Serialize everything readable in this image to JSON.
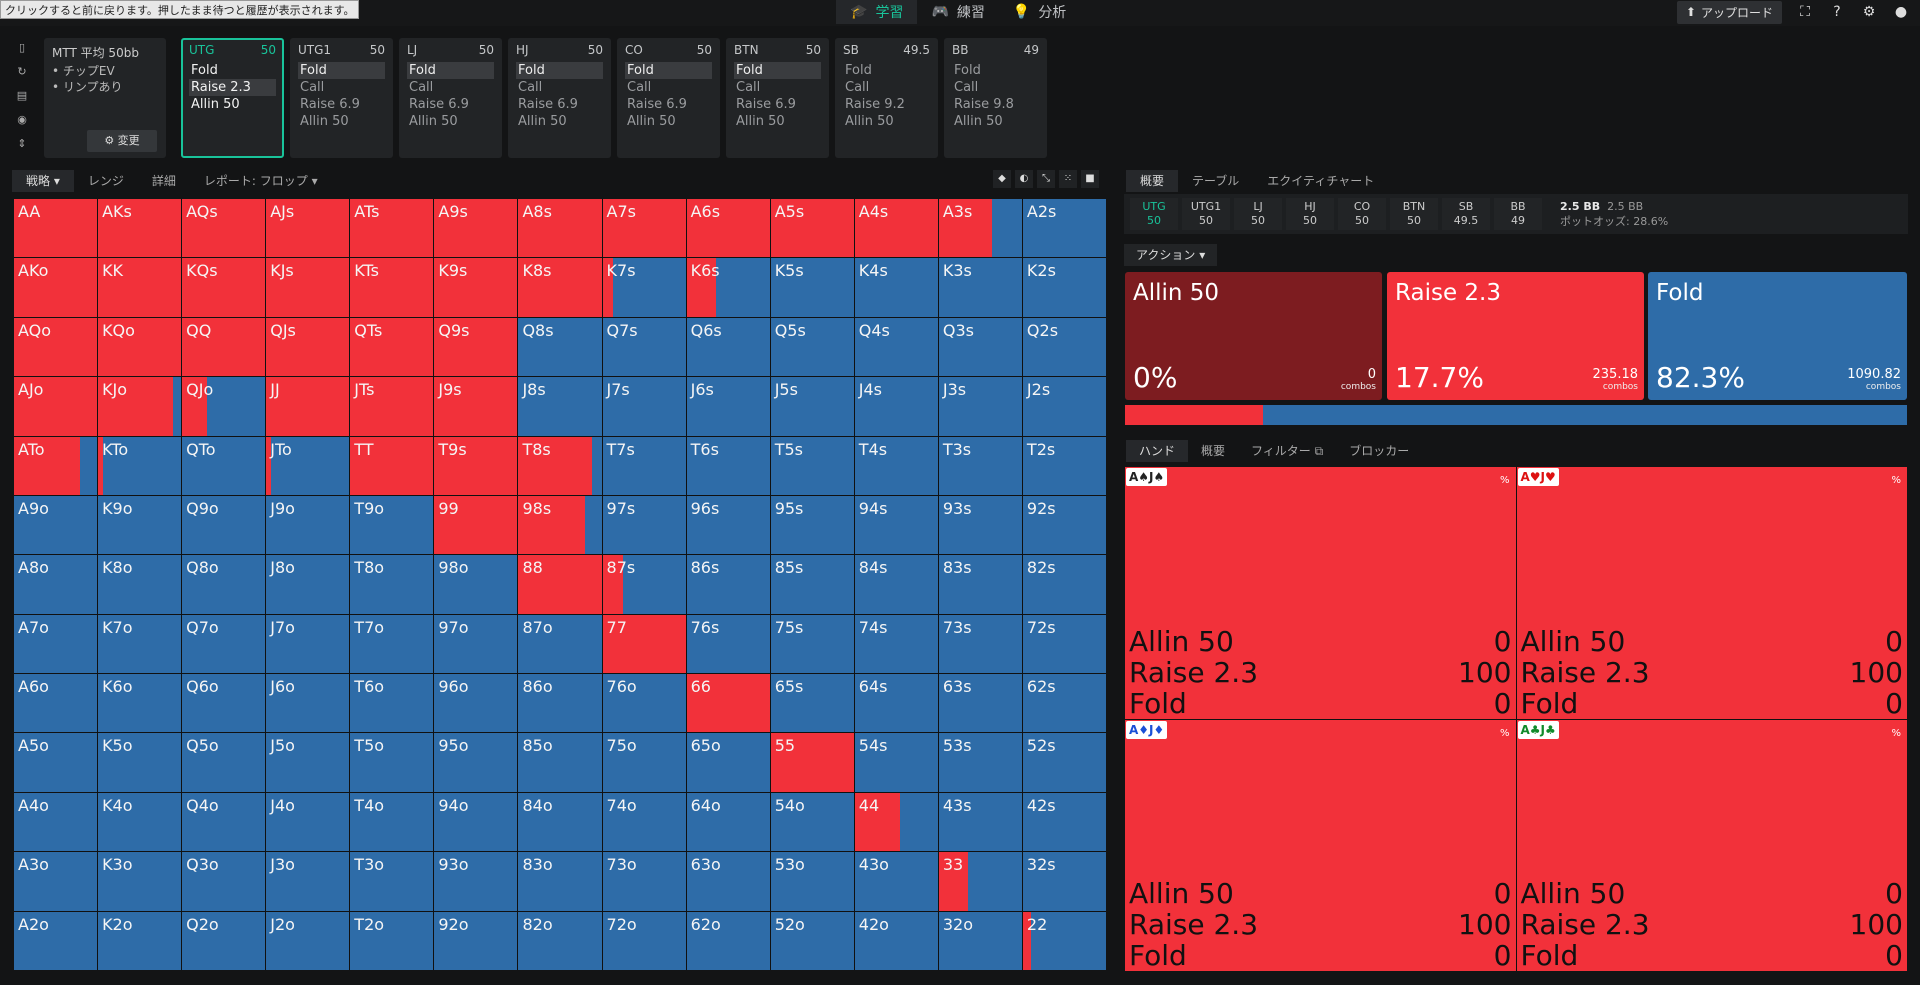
{
  "tooltip": "クリックすると前に戻ります。押したまま待つと履歴が表示されます。",
  "nav": {
    "tabs": [
      {
        "label": "学習",
        "icon": "graduation-cap-icon"
      },
      {
        "label": "練習",
        "icon": "gamepad-icon"
      },
      {
        "label": "分析",
        "icon": "lightbulb-icon"
      }
    ],
    "upload_label": "アップロード"
  },
  "info": {
    "title": "MTT 平均 50bb",
    "items": [
      "チップEV",
      "リンプあり"
    ],
    "change_label": "変更"
  },
  "positions": [
    {
      "name": "UTG",
      "stack": "50",
      "actions": [
        "Fold",
        "Raise 2.3",
        "Allin 50"
      ],
      "selected": 1
    },
    {
      "name": "UTG1",
      "stack": "50",
      "actions": [
        "Fold",
        "Call",
        "Raise 6.9",
        "Allin 50"
      ],
      "selected": 0
    },
    {
      "name": "LJ",
      "stack": "50",
      "actions": [
        "Fold",
        "Call",
        "Raise 6.9",
        "Allin 50"
      ],
      "selected": 0
    },
    {
      "name": "HJ",
      "stack": "50",
      "actions": [
        "Fold",
        "Call",
        "Raise 6.9",
        "Allin 50"
      ],
      "selected": 0
    },
    {
      "name": "CO",
      "stack": "50",
      "actions": [
        "Fold",
        "Call",
        "Raise 6.9",
        "Allin 50"
      ],
      "selected": 0
    },
    {
      "name": "BTN",
      "stack": "50",
      "actions": [
        "Fold",
        "Call",
        "Raise 6.9",
        "Allin 50"
      ],
      "selected": 0
    },
    {
      "name": "SB",
      "stack": "49.5",
      "actions": [
        "Fold",
        "Call",
        "Raise 9.2",
        "Allin 50"
      ],
      "selected": -1
    },
    {
      "name": "BB",
      "stack": "49",
      "actions": [
        "Fold",
        "Call",
        "Raise 9.8",
        "Allin 50"
      ],
      "selected": -1
    }
  ],
  "left_tabs": {
    "strategy": "戦略",
    "range": "レンジ",
    "detail": "詳細",
    "report": "レポート: フロップ"
  },
  "right_tabs": {
    "overview": "概要",
    "table": "テーブル",
    "equity": "エクイティチャート"
  },
  "pos_bar": [
    {
      "name": "UTG",
      "stack": "50"
    },
    {
      "name": "UTG1",
      "stack": "50"
    },
    {
      "name": "LJ",
      "stack": "50"
    },
    {
      "name": "HJ",
      "stack": "50"
    },
    {
      "name": "CO",
      "stack": "50"
    },
    {
      "name": "BTN",
      "stack": "50"
    },
    {
      "name": "SB",
      "stack": "49.5"
    },
    {
      "name": "BB",
      "stack": "49"
    }
  ],
  "pot": {
    "main": "2.5 BB",
    "sub": "2.5 BB",
    "odds_label": "ポットオッズ:",
    "odds_value": "28.6%"
  },
  "action_label": "アクション",
  "actions": [
    {
      "name": "Allin 50",
      "pct": "0%",
      "combos": "0",
      "combos_label": "combos",
      "color": "#7d1c20"
    },
    {
      "name": "Raise 2.3",
      "pct": "17.7%",
      "combos": "235.18",
      "combos_label": "combos",
      "color": "#f2313a"
    },
    {
      "name": "Fold",
      "pct": "82.3%",
      "combos": "1090.82",
      "combos_label": "combos",
      "color": "#2e6ca8"
    }
  ],
  "raise_freq": 0.177,
  "hand_tabs": {
    "hand": "ハンド",
    "overview": "概要",
    "filter": "フィルター",
    "blocker": "ブロッカー"
  },
  "combos": [
    {
      "card": "A♠J♠",
      "color": "#222",
      "pct": "%",
      "rows": [
        [
          "Allin 50",
          "0"
        ],
        [
          "Raise 2.3",
          "100"
        ],
        [
          "Fold",
          "0"
        ]
      ]
    },
    {
      "card": "A♥J♥",
      "color": "#d11",
      "pct": "%",
      "rows": [
        [
          "Allin 50",
          "0"
        ],
        [
          "Raise 2.3",
          "100"
        ],
        [
          "Fold",
          "0"
        ]
      ]
    },
    {
      "card": "A♦J♦",
      "color": "#1a4fd6",
      "pct": "%",
      "rows": [
        [
          "Allin 50",
          "0"
        ],
        [
          "Raise 2.3",
          "100"
        ],
        [
          "Fold",
          "0"
        ]
      ]
    },
    {
      "card": "A♣J♣",
      "color": "#118a2a",
      "pct": "%",
      "rows": [
        [
          "Allin 50",
          "0"
        ],
        [
          "Raise 2.3",
          "100"
        ],
        [
          "Fold",
          "0"
        ]
      ]
    }
  ],
  "colors": {
    "raise": "#f2313a",
    "fold": "#2e6ca8",
    "allin": "#7d1c20",
    "accent": "#19c39a"
  },
  "hand_matrix": {
    "labels": [
      [
        "AA",
        "AKs",
        "AQs",
        "AJs",
        "ATs",
        "A9s",
        "A8s",
        "A7s",
        "A6s",
        "A5s",
        "A4s",
        "A3s",
        "A2s"
      ],
      [
        "AKo",
        "KK",
        "KQs",
        "KJs",
        "KTs",
        "K9s",
        "K8s",
        "K7s",
        "K6s",
        "K5s",
        "K4s",
        "K3s",
        "K2s"
      ],
      [
        "AQo",
        "KQo",
        "QQ",
        "QJs",
        "QTs",
        "Q9s",
        "Q8s",
        "Q7s",
        "Q6s",
        "Q5s",
        "Q4s",
        "Q3s",
        "Q2s"
      ],
      [
        "AJo",
        "KJo",
        "QJo",
        "JJ",
        "JTs",
        "J9s",
        "J8s",
        "J7s",
        "J6s",
        "J5s",
        "J4s",
        "J3s",
        "J2s"
      ],
      [
        "ATo",
        "KTo",
        "QTo",
        "JTo",
        "TT",
        "T9s",
        "T8s",
        "T7s",
        "T6s",
        "T5s",
        "T4s",
        "T3s",
        "T2s"
      ],
      [
        "A9o",
        "K9o",
        "Q9o",
        "J9o",
        "T9o",
        "99",
        "98s",
        "97s",
        "96s",
        "95s",
        "94s",
        "93s",
        "92s"
      ],
      [
        "A8o",
        "K8o",
        "Q8o",
        "J8o",
        "T8o",
        "98o",
        "88",
        "87s",
        "86s",
        "85s",
        "84s",
        "83s",
        "82s"
      ],
      [
        "A7o",
        "K7o",
        "Q7o",
        "J7o",
        "T7o",
        "97o",
        "87o",
        "77",
        "76s",
        "75s",
        "74s",
        "73s",
        "72s"
      ],
      [
        "A6o",
        "K6o",
        "Q6o",
        "J6o",
        "T6o",
        "96o",
        "86o",
        "76o",
        "66",
        "65s",
        "64s",
        "63s",
        "62s"
      ],
      [
        "A5o",
        "K5o",
        "Q5o",
        "J5o",
        "T5o",
        "95o",
        "85o",
        "75o",
        "65o",
        "55",
        "54s",
        "53s",
        "52s"
      ],
      [
        "A4o",
        "K4o",
        "Q4o",
        "J4o",
        "T4o",
        "94o",
        "84o",
        "74o",
        "64o",
        "54o",
        "44",
        "43s",
        "42s"
      ],
      [
        "A3o",
        "K3o",
        "Q3o",
        "J3o",
        "T3o",
        "93o",
        "83o",
        "73o",
        "63o",
        "53o",
        "43o",
        "33",
        "32s"
      ],
      [
        "A2o",
        "K2o",
        "Q2o",
        "J2o",
        "T2o",
        "92o",
        "82o",
        "72o",
        "62o",
        "52o",
        "42o",
        "32o",
        "22"
      ]
    ],
    "raise_freq": [
      [
        1,
        1,
        1,
        1,
        1,
        1,
        1,
        1,
        1,
        1,
        1,
        0.64,
        0
      ],
      [
        1,
        1,
        1,
        1,
        1,
        1,
        1,
        0.13,
        0.35,
        0,
        0,
        0,
        0
      ],
      [
        1,
        1,
        1,
        1,
        1,
        1,
        0,
        0,
        0,
        0,
        0,
        0,
        0
      ],
      [
        1,
        0.9,
        0.3,
        1,
        1,
        1,
        0,
        0,
        0,
        0,
        0,
        0,
        0
      ],
      [
        0.8,
        0.06,
        0,
        0.06,
        1,
        1,
        0.88,
        0,
        0,
        0,
        0,
        0,
        0
      ],
      [
        0,
        0,
        0,
        0,
        0,
        1,
        0.8,
        0,
        0,
        0,
        0,
        0,
        0
      ],
      [
        0,
        0,
        0,
        0,
        0,
        0,
        1,
        0.25,
        0,
        0,
        0,
        0,
        0
      ],
      [
        0,
        0,
        0,
        0,
        0,
        0,
        0,
        1,
        0,
        0,
        0,
        0,
        0
      ],
      [
        0,
        0,
        0,
        0,
        0,
        0,
        0,
        0,
        1,
        0,
        0,
        0,
        0
      ],
      [
        0,
        0,
        0,
        0,
        0,
        0,
        0,
        0,
        0,
        1,
        0,
        0,
        0
      ],
      [
        0,
        0,
        0,
        0,
        0,
        0,
        0,
        0,
        0,
        0,
        0.55,
        0,
        0
      ],
      [
        0,
        0,
        0,
        0,
        0,
        0,
        0,
        0,
        0,
        0,
        0,
        0.35,
        0
      ],
      [
        0,
        0,
        0,
        0,
        0,
        0,
        0,
        0,
        0,
        0,
        0,
        0,
        0.1
      ]
    ]
  }
}
